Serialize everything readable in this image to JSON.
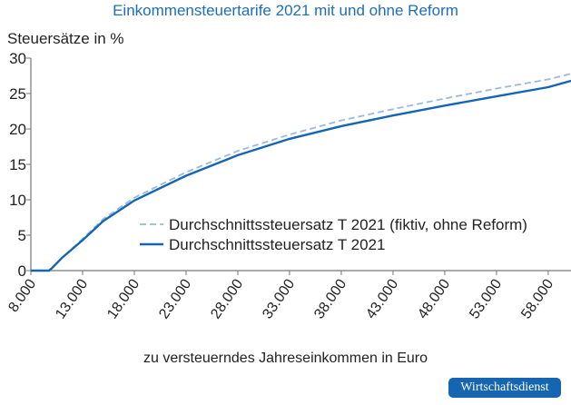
{
  "chart_data": {
    "type": "line",
    "title": "Einkommensteuertarife 2021 mit und ohne Reform",
    "ylabel": "Steuersätze in %",
    "xlabel": "zu versteuerndes Jahreseinkommen in Euro",
    "xlim": [
      8000,
      60200
    ],
    "ylim": [
      0,
      30
    ],
    "xticks": [
      8000,
      13000,
      18000,
      23000,
      28000,
      33000,
      38000,
      43000,
      48000,
      53000,
      58000
    ],
    "xtick_labels": [
      "8.000",
      "13.000",
      "18.000",
      "23.000",
      "28.000",
      "33.000",
      "38.000",
      "43.000",
      "48.000",
      "53.000",
      "58.000"
    ],
    "yticks": [
      0,
      5,
      10,
      15,
      20,
      25,
      30
    ],
    "ytick_labels": [
      "0",
      "5",
      "10",
      "15",
      "20",
      "25",
      "30"
    ],
    "grid": false,
    "legend_placement": "center-right",
    "series": [
      {
        "name": "Durchschnittssteuersatz T 2021 (fiktiv, ohne Reform)",
        "style": "dashed",
        "color": "#9bb8e3",
        "x": [
          8000,
          9000,
          9744,
          10000,
          11000,
          13000,
          15000,
          18000,
          23000,
          28000,
          33000,
          38000,
          43000,
          48000,
          53000,
          58000,
          60200
        ],
        "y": [
          0,
          0,
          0,
          0.3,
          1.8,
          4.5,
          7.3,
          10.3,
          13.9,
          16.9,
          19.2,
          21.2,
          22.8,
          24.3,
          25.7,
          27.0,
          27.8
        ]
      },
      {
        "name": "Durchschnittssteuersatz T 2021",
        "style": "solid",
        "color": "#1466b5",
        "x": [
          8000,
          9000,
          9744,
          10000,
          11000,
          13000,
          15000,
          18000,
          23000,
          28000,
          33000,
          38000,
          43000,
          48000,
          53000,
          58000,
          60200
        ],
        "y": [
          0,
          0,
          0,
          0.3,
          1.8,
          4.3,
          7.0,
          9.9,
          13.4,
          16.3,
          18.6,
          20.4,
          21.9,
          23.3,
          24.6,
          25.9,
          26.8
        ]
      }
    ]
  },
  "badge": "Wirtschaftsdienst"
}
